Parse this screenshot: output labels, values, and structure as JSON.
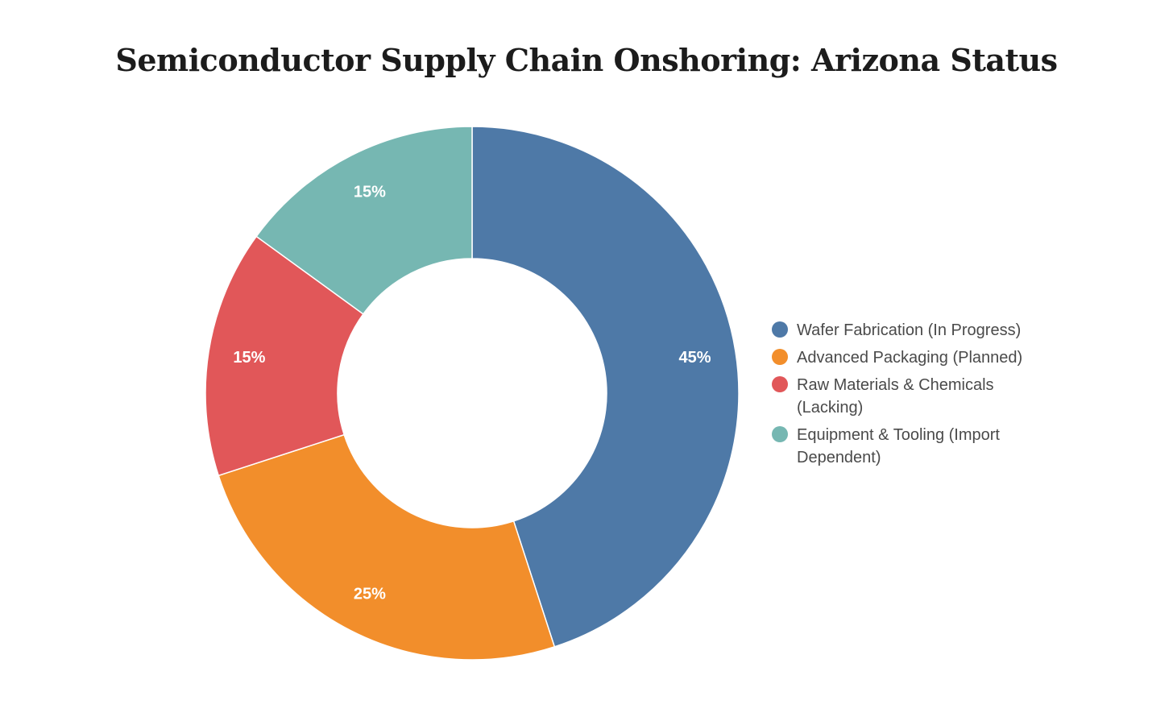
{
  "chart_data": {
    "type": "pie",
    "variant": "donut",
    "title": "Semiconductor Supply Chain Onshoring: Arizona Status",
    "legend_position": "right",
    "slices": [
      {
        "label": "Wafer Fabrication (In Progress)",
        "value": 45,
        "display": "45%",
        "color": "#4e79a7"
      },
      {
        "label": "Advanced Packaging (Planned)",
        "value": 25,
        "display": "25%",
        "color": "#f28e2b"
      },
      {
        "label": "Raw Materials & Chemicals (Lacking)",
        "value": 15,
        "display": "15%",
        "color": "#e15759"
      },
      {
        "label": "Equipment & Tooling (Import Dependent)",
        "value": 15,
        "display": "15%",
        "color": "#76b7b2"
      }
    ]
  }
}
